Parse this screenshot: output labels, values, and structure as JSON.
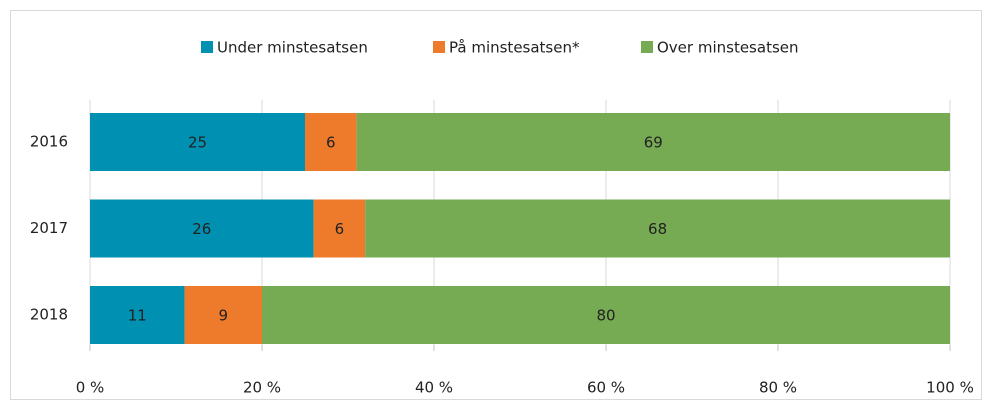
{
  "chart_data": {
    "type": "stacked-barh",
    "categories": [
      "2016",
      "2017",
      "2018"
    ],
    "series": [
      {
        "name": "Under minstesatsen",
        "color": "#0090b2",
        "values": [
          25,
          26,
          11
        ]
      },
      {
        "name": "På minstesatsen*",
        "color": "#ee7a2b",
        "values": [
          6,
          6,
          9
        ]
      },
      {
        "name": "Over minstesatsen",
        "color": "#76ab53",
        "values": [
          69,
          68,
          80
        ]
      }
    ],
    "xlim": [
      0,
      100
    ],
    "xticks": [
      {
        "value": 0,
        "label": "0 %"
      },
      {
        "value": 20,
        "label": "20 %"
      },
      {
        "value": 40,
        "label": "40 %"
      },
      {
        "value": 60,
        "label": "60 %"
      },
      {
        "value": 80,
        "label": "80 %"
      },
      {
        "value": 100,
        "label": "100 %"
      }
    ],
    "grid": true,
    "legend": "top"
  }
}
